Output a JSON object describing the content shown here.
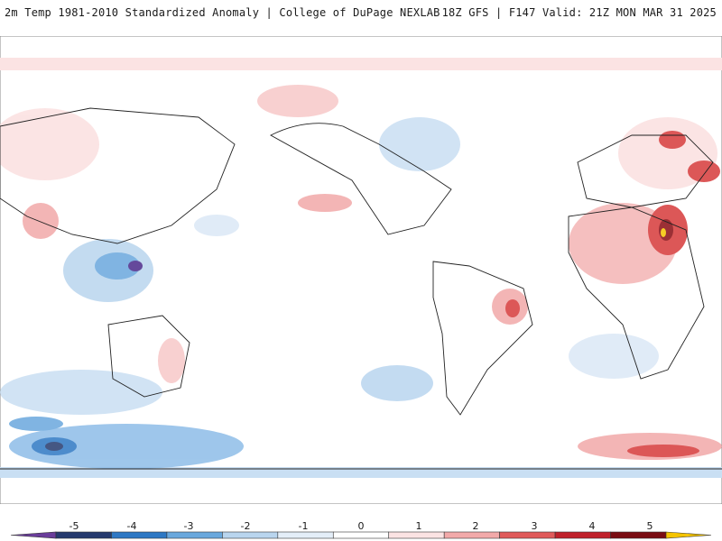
{
  "header": {
    "title": "2m Temp 1981-2010 Standardized Anomaly | College of DuPage NEXLAB",
    "valid": "18Z GFS | F147 Valid: 21Z MON MAR 31 2025"
  },
  "colorbar": {
    "labels": [
      "-5",
      "-4",
      "-3",
      "-2",
      "-1",
      "0",
      "1",
      "2",
      "3",
      "4",
      "5"
    ],
    "colors": [
      "#6a3d9a",
      "#253a6e",
      "#2e78c4",
      "#6aa8dd",
      "#b9d5ee",
      "#e4eef8",
      "#ffffff",
      "#fbe3e3",
      "#f2a9a9",
      "#e05a5a",
      "#c0202a",
      "#7a0c12",
      "#f5c400"
    ]
  },
  "map_colors": {
    "ocean_bg": "#ffffff",
    "coast": "#222222",
    "warm_light": "#fbe0e0",
    "warm_mid": "#f2a9a9",
    "warm_strong": "#d63a3a",
    "warm_extreme": "#8a0d12",
    "cold_light": "#dbe8f6",
    "cold_mid": "#8ebde8",
    "cold_strong": "#2e78c4",
    "cold_extreme": "#4b2a8a"
  }
}
